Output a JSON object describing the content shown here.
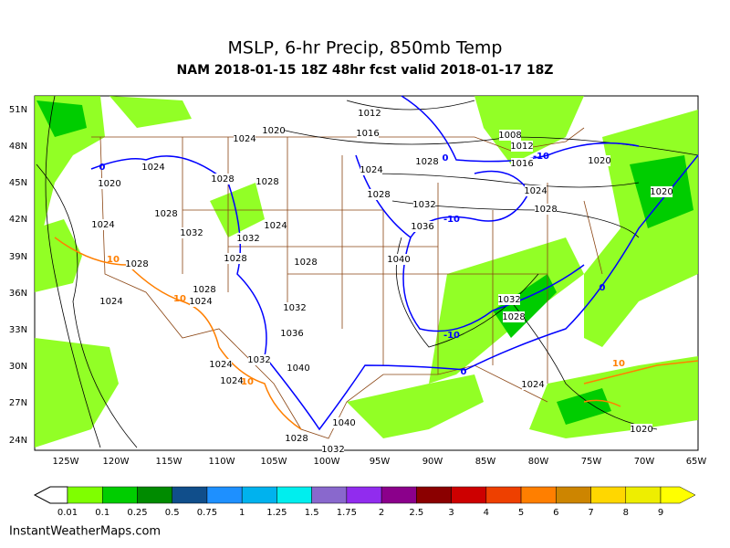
{
  "header": {
    "title": "MSLP, 6-hr Precip, 850mb Temp",
    "subtitle": "NAM 2018-01-15 18Z 48hr fcst valid 2018-01-17 18Z"
  },
  "map": {
    "lat_labels": [
      "51N",
      "48N",
      "45N",
      "42N",
      "39N",
      "36N",
      "33N",
      "30N",
      "27N",
      "24N"
    ],
    "lon_labels": [
      "125W",
      "120W",
      "115W",
      "110W",
      "105W",
      "100W",
      "95W",
      "90W",
      "85W",
      "80W",
      "75W",
      "70W",
      "65W"
    ],
    "isobar_labels": [
      "1012",
      "1020",
      "1024",
      "1016",
      "1008",
      "1012",
      "1016",
      "1020",
      "1024",
      "1024",
      "1028",
      "1020",
      "1028",
      "1028",
      "1028",
      "1032",
      "1024",
      "1028",
      "1020",
      "1024",
      "1028",
      "1032",
      "1024",
      "1036",
      "1032",
      "1028",
      "1028",
      "1040",
      "1028",
      "1024",
      "1028",
      "1024",
      "1032",
      "1032",
      "1036",
      "1028",
      "1032",
      "1024",
      "1040",
      "1024",
      "1024",
      "1040",
      "1028",
      "1032",
      "1020"
    ],
    "temp_labels": [
      "0",
      "0",
      "-10",
      "-10",
      "-10",
      "0",
      "0",
      "10",
      "10",
      "10",
      "10"
    ]
  },
  "colorbar": {
    "labels": [
      "0.01",
      "0.1",
      "0.25",
      "0.5",
      "0.75",
      "1",
      "1.25",
      "1.5",
      "1.75",
      "2",
      "2.5",
      "3",
      "4",
      "5",
      "6",
      "7",
      "8",
      "9"
    ],
    "colors": [
      "#7fff00",
      "#00cd00",
      "#008b00",
      "#104e8b",
      "#1e90ff",
      "#00b2ee",
      "#00eeee",
      "#8968cd",
      "#912cee",
      "#8b008b",
      "#8b0000",
      "#cd0000",
      "#ee4000",
      "#ff7f00",
      "#cd8500",
      "#ffd700",
      "#eeee00"
    ],
    "end_color": "#ffff00"
  },
  "footer": "InstantWeatherMaps.com"
}
